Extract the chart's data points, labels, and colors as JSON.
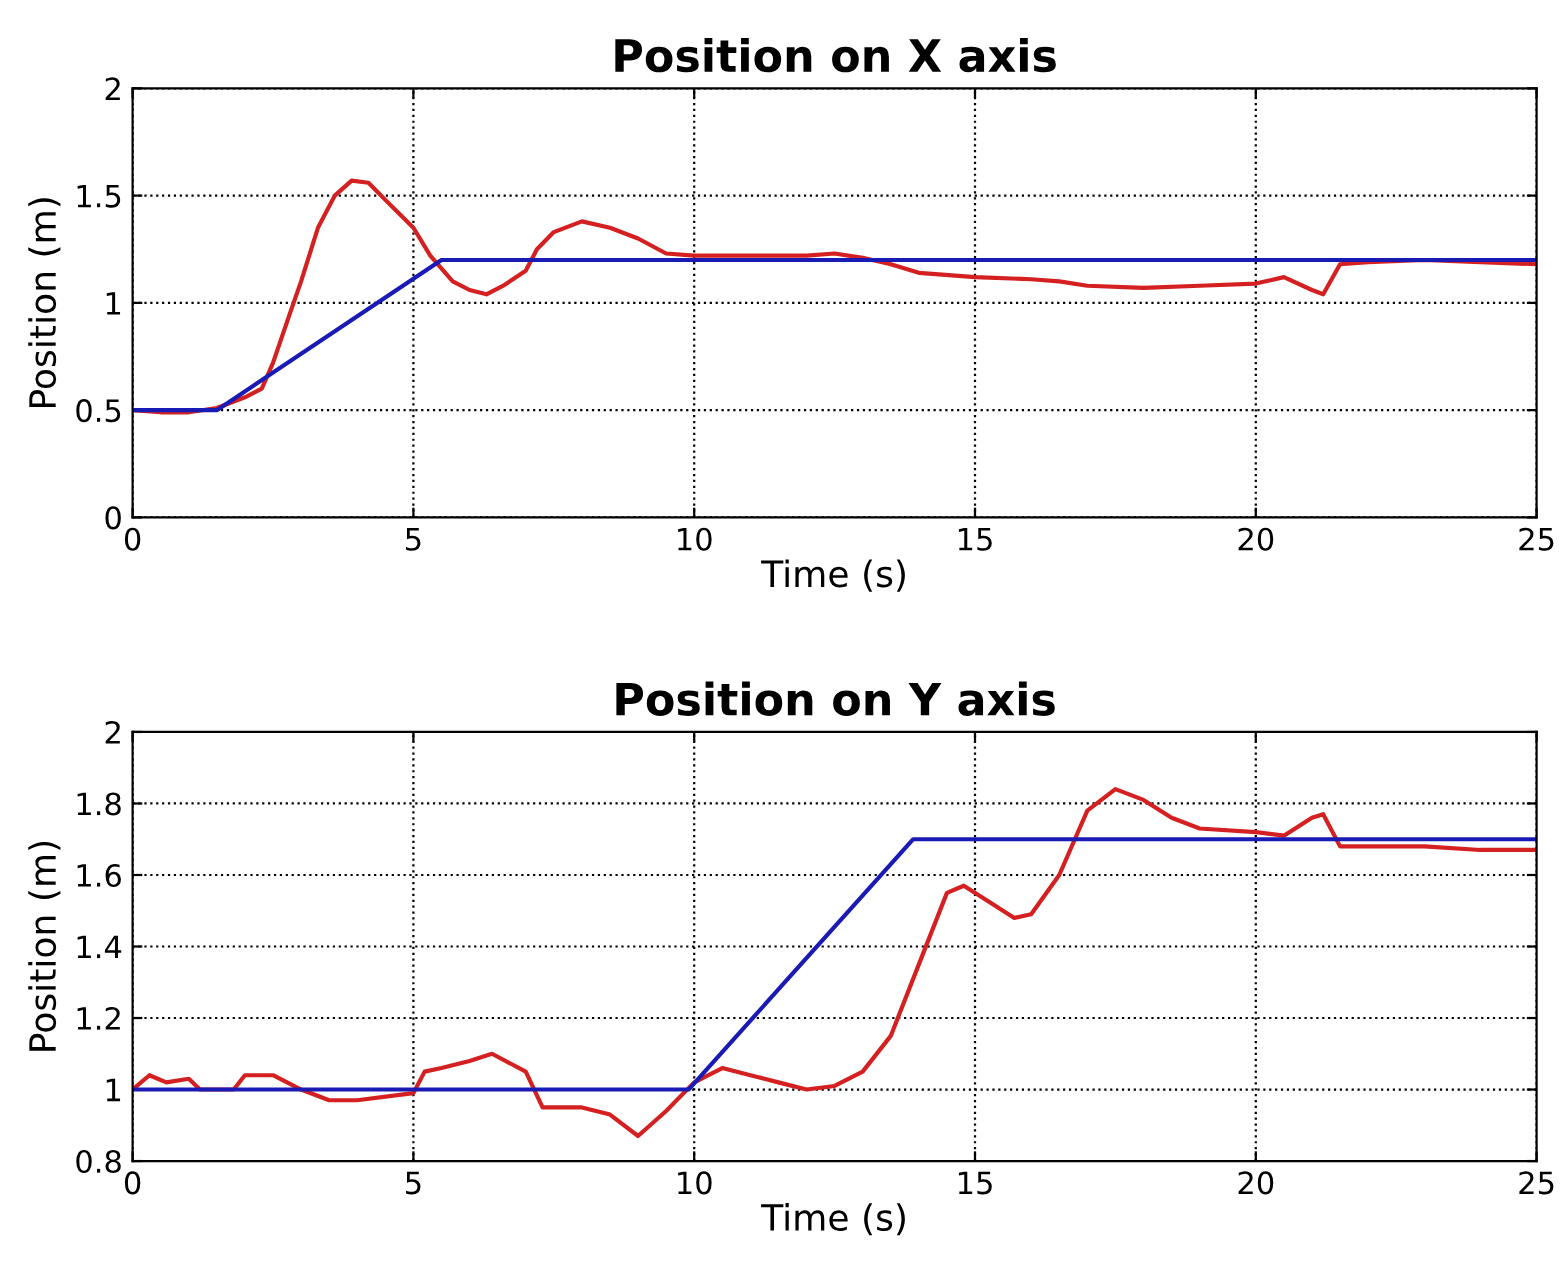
{
  "chart_data": [
    {
      "type": "line",
      "title": "Position on X axis",
      "xlabel": "Time (s)",
      "ylabel": "Position (m)",
      "xlim": [
        0,
        25
      ],
      "xticks": [
        0,
        5,
        10,
        15,
        20,
        25
      ],
      "ylim": [
        0,
        2
      ],
      "yticks": [
        0,
        0.5,
        1,
        1.5,
        2
      ],
      "grid": true,
      "legend": false,
      "series": [
        {
          "color": "#d42020",
          "x": [
            0,
            0.5,
            1,
            1.5,
            2,
            2.3,
            2.5,
            2.8,
            3,
            3.3,
            3.6,
            3.9,
            4.2,
            4.5,
            5,
            5.3,
            5.7,
            6,
            6.3,
            6.6,
            7,
            7.2,
            7.5,
            8,
            8.5,
            9,
            9.5,
            10,
            11,
            12,
            12.5,
            13,
            13.5,
            14,
            15,
            16,
            16.5,
            17,
            18,
            19,
            20,
            20.5,
            21,
            21.2,
            21.5,
            22,
            23,
            24,
            25
          ],
          "values": [
            0.5,
            0.49,
            0.49,
            0.51,
            0.56,
            0.6,
            0.72,
            0.95,
            1.1,
            1.35,
            1.5,
            1.57,
            1.56,
            1.48,
            1.35,
            1.22,
            1.1,
            1.06,
            1.04,
            1.08,
            1.15,
            1.25,
            1.33,
            1.38,
            1.35,
            1.3,
            1.23,
            1.22,
            1.22,
            1.22,
            1.23,
            1.21,
            1.18,
            1.14,
            1.12,
            1.11,
            1.1,
            1.08,
            1.07,
            1.08,
            1.09,
            1.12,
            1.06,
            1.04,
            1.18,
            1.19,
            1.2,
            1.19,
            1.18
          ]
        },
        {
          "color": "#1a1ab4",
          "x": [
            0,
            1.5,
            5.5,
            25
          ],
          "values": [
            0.5,
            0.5,
            1.2,
            1.2
          ]
        }
      ]
    },
    {
      "type": "line",
      "title": "Position on Y axis",
      "xlabel": "Time (s)",
      "ylabel": "Position (m)",
      "xlim": [
        0,
        25
      ],
      "xticks": [
        0,
        5,
        10,
        15,
        20,
        25
      ],
      "ylim": [
        0.8,
        2
      ],
      "yticks": [
        0.8,
        1,
        1.2,
        1.4,
        1.6,
        1.8,
        2
      ],
      "grid": true,
      "legend": false,
      "series": [
        {
          "color": "#d42020",
          "x": [
            0,
            0.3,
            0.6,
            1,
            1.2,
            1.8,
            2,
            2.5,
            3,
            3.5,
            4,
            5,
            5.2,
            5.5,
            6,
            6.4,
            7,
            7.3,
            8,
            8.5,
            9,
            9.5,
            10,
            10.5,
            11,
            11.5,
            12,
            12.5,
            13,
            13.5,
            14,
            14.5,
            14.8,
            15.2,
            15.7,
            16,
            16.5,
            17,
            17.5,
            18,
            18.5,
            19,
            20,
            20.5,
            21,
            21.2,
            21.5,
            22,
            23,
            24,
            25
          ],
          "values": [
            1.0,
            1.04,
            1.02,
            1.03,
            1.0,
            1.0,
            1.04,
            1.04,
            1.0,
            0.97,
            0.97,
            0.99,
            1.05,
            1.06,
            1.08,
            1.1,
            1.05,
            0.95,
            0.95,
            0.93,
            0.87,
            0.94,
            1.02,
            1.06,
            1.04,
            1.02,
            1.0,
            1.01,
            1.05,
            1.15,
            1.35,
            1.55,
            1.57,
            1.53,
            1.48,
            1.49,
            1.6,
            1.78,
            1.84,
            1.81,
            1.76,
            1.73,
            1.72,
            1.71,
            1.76,
            1.77,
            1.68,
            1.68,
            1.68,
            1.67,
            1.67
          ]
        },
        {
          "color": "#1a1ab4",
          "x": [
            0,
            9.9,
            13.9,
            25
          ],
          "values": [
            1,
            1,
            1.7,
            1.7
          ]
        }
      ]
    }
  ]
}
